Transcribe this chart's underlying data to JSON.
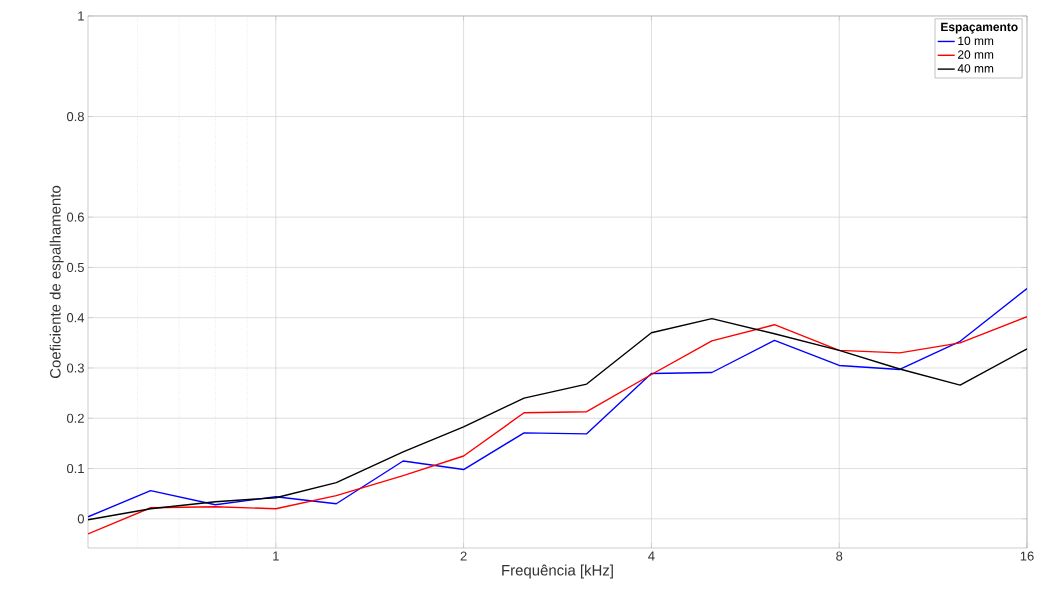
{
  "chart_data": {
    "type": "line",
    "xlabel": "Frequência [kHz]",
    "ylabel": "Coeficiente de espalhamento",
    "legend_title": "Espaçamento",
    "x": [
      0.5,
      0.63,
      0.8,
      1,
      1.25,
      1.6,
      2,
      2.5,
      3.15,
      4,
      5,
      6.3,
      8,
      10,
      12.5,
      16
    ],
    "series": [
      {
        "name": "10 mm",
        "color": "#0000ff",
        "values": [
          0.004,
          0.056,
          0.028,
          0.044,
          0.03,
          0.115,
          0.098,
          0.171,
          0.169,
          0.289,
          0.291,
          0.355,
          0.305,
          0.297,
          0.353,
          0.458
        ]
      },
      {
        "name": "20 mm",
        "color": "#ff0000",
        "values": [
          -0.03,
          0.022,
          0.024,
          0.02,
          0.046,
          0.086,
          0.125,
          0.211,
          0.213,
          0.287,
          0.354,
          0.386,
          0.335,
          0.33,
          0.35,
          0.402
        ]
      },
      {
        "name": "40 mm",
        "color": "#000000",
        "values": [
          -0.002,
          0.02,
          0.034,
          0.042,
          0.072,
          0.133,
          0.183,
          0.24,
          0.268,
          0.37,
          0.398,
          0.368,
          0.335,
          0.298,
          0.266,
          0.338
        ]
      }
    ],
    "log": "x",
    "xlim": [
      0.5,
      16
    ],
    "ylim": [
      -0.058,
      1
    ],
    "xticks": [
      {
        "value": 0.6,
        "label": null
      },
      {
        "value": 0.7,
        "label": null
      },
      {
        "value": 0.8,
        "label": null
      },
      {
        "value": 0.9,
        "label": null
      },
      1,
      2,
      4,
      8,
      16
    ],
    "yticks": [
      0,
      0.1,
      0.2,
      0.3,
      0.4,
      0.5,
      0.6,
      0.8,
      1
    ],
    "grid": true,
    "legend": "top right",
    "marker": "none",
    "line_style": "solid"
  }
}
